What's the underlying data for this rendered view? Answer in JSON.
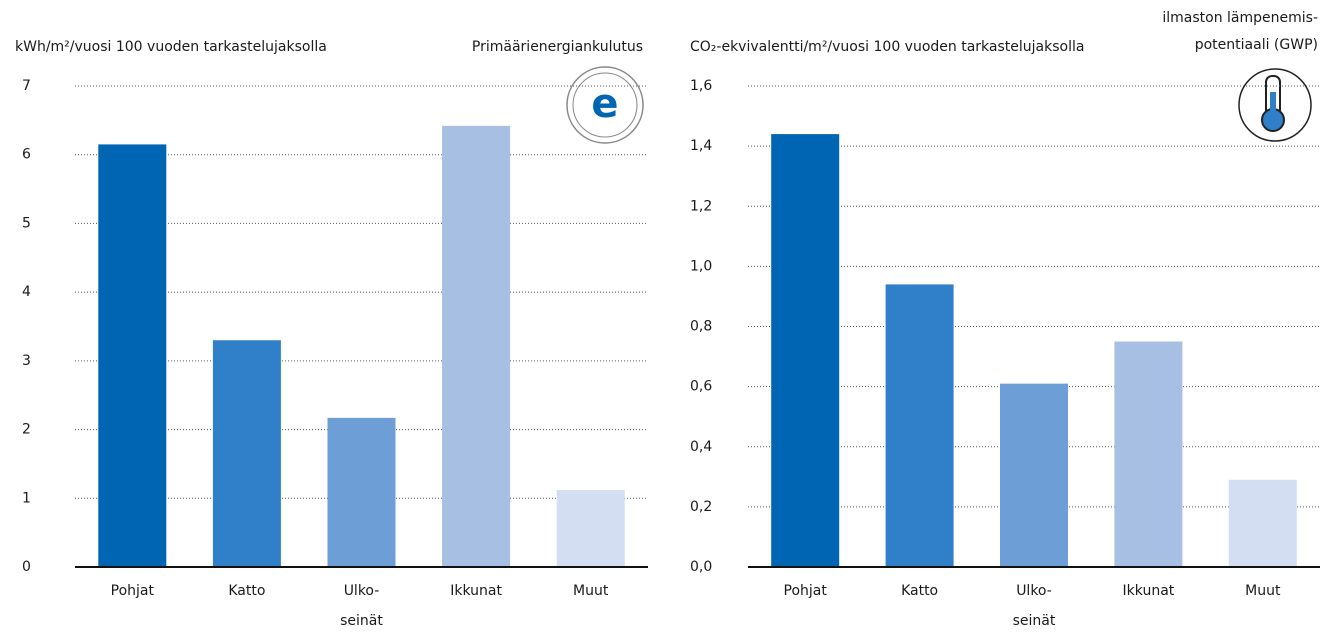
{
  "chart_data": [
    {
      "type": "bar",
      "title": "Primäärienergiankulutus",
      "ylabel": "kWh/m²/vuosi 100 vuoden tarkastelujaksolla",
      "categories": [
        "Pohjat",
        "Katto",
        "Ulko-\nseinät",
        "Ikkunat",
        "Muut"
      ],
      "values": [
        6.15,
        3.3,
        2.17,
        6.42,
        1.12
      ],
      "colors": [
        "#0065b3",
        "#2f80c8",
        "#6e9ed6",
        "#a6bfe3",
        "#d3def2"
      ],
      "ylim": [
        0,
        7
      ],
      "yticks": [
        0,
        1,
        2,
        3,
        4,
        5,
        6,
        7
      ],
      "grid": true
    },
    {
      "type": "bar",
      "title": "ilmaston lämpenemis-\npotentiaali (GWP)",
      "ylabel": "CO₂-ekvivalentti/m²/vuosi 100 vuoden tarkastelujaksolla",
      "categories": [
        "Pohjat",
        "Katto",
        "Ulko-\nseinät",
        "Ikkunat",
        "Muut"
      ],
      "values": [
        1.44,
        0.94,
        0.61,
        0.75,
        0.29
      ],
      "colors": [
        "#0065b3",
        "#2f80c8",
        "#6e9ed6",
        "#a6bfe3",
        "#d3def2"
      ],
      "ylim": [
        0,
        1.6
      ],
      "yticks": [
        {
          "value": 0,
          "label": "0,0"
        },
        {
          "value": 0.2,
          "label": "0,2"
        },
        {
          "value": 0.4,
          "label": "0,4"
        },
        {
          "value": 0.6,
          "label": "0,6"
        },
        {
          "value": 0.8,
          "label": "0,8"
        },
        {
          "value": 1.0,
          "label": "1,0"
        },
        {
          "value": 1.2,
          "label": "1,2"
        },
        {
          "value": 1.4,
          "label": "1,4"
        },
        {
          "value": 1.6,
          "label": "1,6"
        }
      ],
      "grid": true
    }
  ]
}
